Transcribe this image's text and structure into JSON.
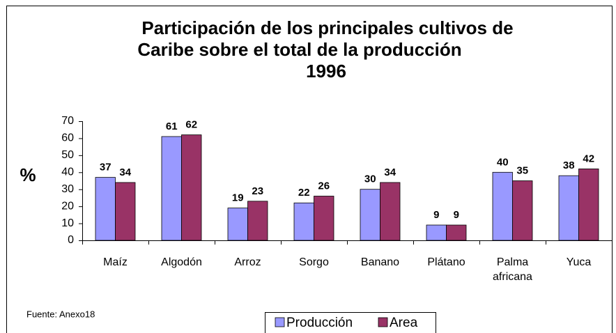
{
  "chart_data": {
    "type": "bar",
    "title": [
      "Participación de los principales cultivos de",
      "Caribe sobre el total de la producción",
      "1996"
    ],
    "ylabel": "%",
    "categories": [
      "Maíz",
      "Algodón",
      "Arroz",
      "Sorgo",
      "Banano",
      "Plátano",
      "Palma africana",
      "Yuca"
    ],
    "series": [
      {
        "name": "Producción",
        "color": "#9999ff",
        "values": [
          37,
          61,
          19,
          22,
          30,
          9,
          40,
          38
        ]
      },
      {
        "name": "Area",
        "color": "#993366",
        "values": [
          34,
          62,
          23,
          26,
          34,
          9,
          35,
          42
        ]
      }
    ],
    "ylim": [
      0,
      70
    ],
    "yticks": [
      0,
      10,
      20,
      30,
      40,
      50,
      60,
      70
    ],
    "source": "Fuente: Anexo18"
  }
}
